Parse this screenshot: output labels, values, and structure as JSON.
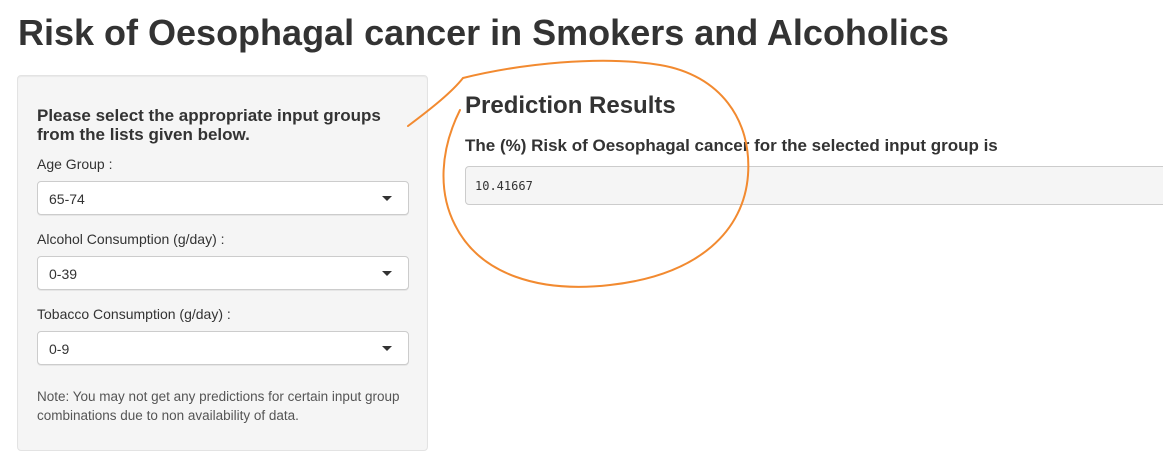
{
  "header": {
    "title": "Risk of Oesophagal cancer in Smokers and Alcoholics"
  },
  "sidebar": {
    "heading": "Please select the appropriate input groups from the lists given below.",
    "fields": [
      {
        "label": "Age Group :",
        "selected": "65-74"
      },
      {
        "label": "Alcohol Consumption (g/day) :",
        "selected": "0-39"
      },
      {
        "label": "Tobacco Consumption (g/day) :",
        "selected": "0-9"
      }
    ],
    "note": "Note: You may not get any predictions for certain input group combinations due to non availability of data."
  },
  "main": {
    "title": "Prediction Results",
    "result_label": "The (%) Risk of Oesophagal cancer for the selected input group is",
    "result_value": "10.41667"
  },
  "colors": {
    "annotation": "#f28a30",
    "panel_bg": "#f5f5f5",
    "text": "#333333"
  }
}
